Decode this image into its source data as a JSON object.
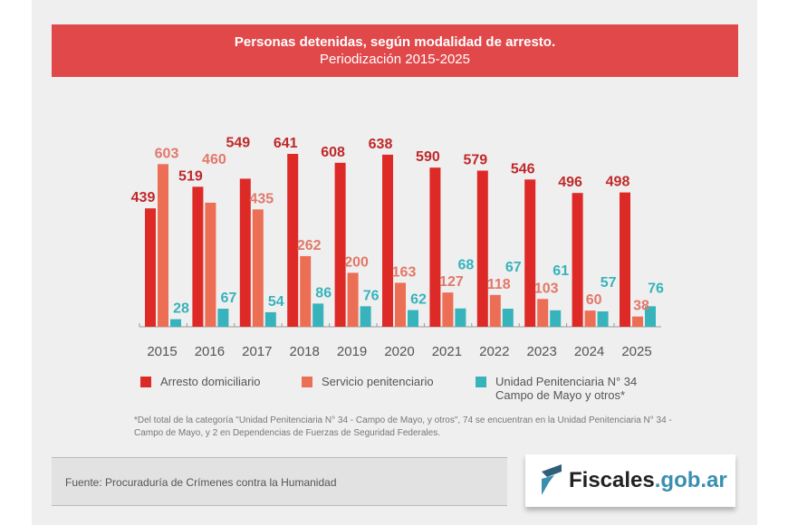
{
  "chart_data": {
    "type": "bar",
    "title": "Personas detenidas, según modalidad de arresto.",
    "subtitle": "Periodización 2015-2025",
    "categories": [
      "2015",
      "2016",
      "2017",
      "2018",
      "2019",
      "2020",
      "2021",
      "2022",
      "2023",
      "2024",
      "2025"
    ],
    "series": [
      {
        "name": "Arresto domiciliario",
        "color": "#de2a27",
        "values": [
          439,
          519,
          549,
          641,
          608,
          638,
          590,
          579,
          546,
          496,
          498
        ]
      },
      {
        "name": "Servicio penitenciario",
        "color": "#ec6e55",
        "values": [
          603,
          460,
          435,
          262,
          200,
          163,
          127,
          118,
          103,
          60,
          38
        ]
      },
      {
        "name": "Unidad Penitenciaria N° 34\nCampo de Mayo y otros*",
        "name_line1": "Unidad Penitenciaria N° 34",
        "name_line2": "Campo de Mayo y otros*",
        "color": "#37b3bb",
        "values": [
          28,
          67,
          54,
          86,
          76,
          62,
          68,
          67,
          61,
          57,
          76
        ]
      }
    ],
    "label_colors": [
      "#c0282a",
      "#e2786a",
      "#37b3bb"
    ],
    "ylim": [
      0,
      680
    ],
    "grid": false,
    "legend_placement": "bottom"
  },
  "note": "*Del total de la categoría \"Unidad Penitenciaria N° 34 - Campo de Mayo, y otros\", 74 se encuentran en la Unidad Penitenciaria N° 34 - Campo de Mayo, y 2 en Dependencias de Fuerzas de Seguridad Federales.",
  "source": "Fuente: Procuraduría de Crímenes contra la Humanidad",
  "logo": {
    "name": "Fiscales",
    "domain": ".gob.ar",
    "icon": "fiscales-flag-logo"
  }
}
